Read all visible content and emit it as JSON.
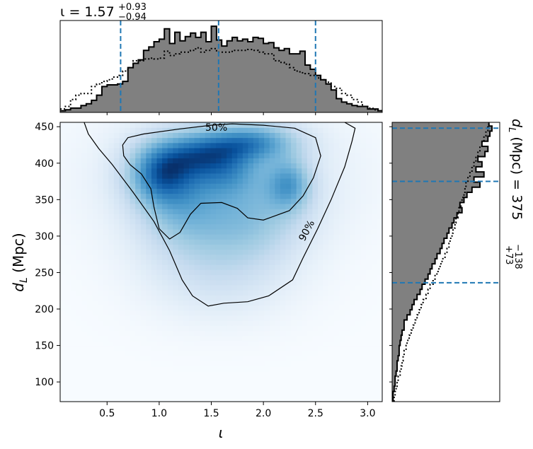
{
  "chart_data": {
    "type": "heatmap",
    "title": "",
    "x": {
      "symbol": "ι",
      "xlabel": "ι",
      "xlim": [
        0.05,
        3.14
      ],
      "ticks": [
        0.5,
        1.0,
        1.5,
        2.0,
        2.5,
        3.0
      ],
      "tick_labels": [
        "0.5",
        "1.0",
        "1.5",
        "2.0",
        "2.5",
        "3.0"
      ]
    },
    "y": {
      "ylabel_main": "d",
      "ylabel_sub": "L",
      "ylabel_unit": "(Mpc)",
      "ylim": [
        73,
        456
      ],
      "ticks": [
        100,
        150,
        200,
        250,
        300,
        350,
        400,
        450
      ],
      "tick_labels": [
        "100",
        "150",
        "200",
        "250",
        "300",
        "350",
        "400",
        "450"
      ]
    },
    "top_marginal": {
      "title_main": "ι = 1.57",
      "title_sup": "+0.93",
      "title_sub": "−0.94",
      "median": 1.57,
      "lower": 0.63,
      "upper": 2.5,
      "bins": [
        0.05,
        0.1,
        0.15,
        0.2,
        0.25,
        0.3,
        0.35,
        0.4,
        0.45,
        0.5,
        0.55,
        0.6,
        0.65,
        0.7,
        0.75,
        0.8,
        0.85,
        0.9,
        0.95,
        1.0,
        1.05,
        1.1,
        1.15,
        1.2,
        1.25,
        1.3,
        1.35,
        1.4,
        1.45,
        1.5,
        1.55,
        1.6,
        1.65,
        1.7,
        1.75,
        1.8,
        1.85,
        1.9,
        1.95,
        2.0,
        2.05,
        2.1,
        2.15,
        2.2,
        2.25,
        2.3,
        2.35,
        2.4,
        2.45,
        2.5,
        2.55,
        2.6,
        2.65,
        2.7,
        2.75,
        2.8,
        2.85,
        2.9,
        2.95,
        3.0,
        3.05,
        3.1,
        3.14
      ],
      "counts": [
        0.02,
        0.03,
        0.05,
        0.05,
        0.08,
        0.1,
        0.14,
        0.2,
        0.3,
        0.32,
        0.32,
        0.33,
        0.36,
        0.52,
        0.57,
        0.61,
        0.72,
        0.76,
        0.82,
        0.85,
        0.97,
        0.8,
        0.93,
        0.83,
        0.88,
        0.92,
        0.87,
        0.93,
        0.82,
        1.0,
        0.84,
        0.77,
        0.83,
        0.87,
        0.83,
        0.85,
        0.82,
        0.87,
        0.86,
        0.8,
        0.81,
        0.75,
        0.72,
        0.74,
        0.68,
        0.68,
        0.71,
        0.55,
        0.5,
        0.43,
        0.38,
        0.33,
        0.26,
        0.16,
        0.12,
        0.1,
        0.08,
        0.07,
        0.07,
        0.04,
        0.04,
        0.02
      ],
      "prior": [
        0.04,
        0.07,
        0.15,
        0.2,
        0.22,
        0.22,
        0.3,
        0.33,
        0.36,
        0.38,
        0.41,
        0.43,
        0.48,
        0.52,
        0.6,
        0.6,
        0.62,
        0.63,
        0.62,
        0.63,
        0.71,
        0.66,
        0.68,
        0.7,
        0.7,
        0.72,
        0.75,
        0.7,
        0.72,
        0.74,
        0.7,
        0.7,
        0.7,
        0.72,
        0.72,
        0.72,
        0.73,
        0.72,
        0.7,
        0.68,
        0.68,
        0.6,
        0.58,
        0.56,
        0.52,
        0.48,
        0.46,
        0.45,
        0.43,
        0.4,
        0.38,
        0.35,
        0.3,
        0.28,
        0.22,
        0.2,
        0.15,
        0.12,
        0.07,
        0.05,
        0.03,
        0.02
      ]
    },
    "right_marginal": {
      "title_main": "d",
      "title_sub": "L",
      "title_unit": "(Mpc) = 375",
      "title_sup2": "+73",
      "title_sub2": "−138",
      "median": 375,
      "lower": 236,
      "upper": 448,
      "bins": [
        73,
        80,
        87,
        94,
        101,
        108,
        115,
        122,
        129,
        136,
        143,
        150,
        157,
        164,
        171,
        178,
        185,
        192,
        199,
        206,
        213,
        220,
        227,
        234,
        241,
        248,
        255,
        262,
        269,
        276,
        283,
        290,
        297,
        304,
        311,
        318,
        325,
        332,
        339,
        346,
        353,
        360,
        367,
        374,
        381,
        388,
        395,
        402,
        409,
        416,
        423,
        430,
        437,
        444,
        451,
        456
      ],
      "counts": [
        0.01,
        0.01,
        0.02,
        0.03,
        0.03,
        0.04,
        0.05,
        0.05,
        0.06,
        0.07,
        0.07,
        0.08,
        0.09,
        0.1,
        0.12,
        0.12,
        0.15,
        0.18,
        0.2,
        0.22,
        0.25,
        0.28,
        0.3,
        0.33,
        0.36,
        0.38,
        0.4,
        0.43,
        0.45,
        0.48,
        0.5,
        0.52,
        0.55,
        0.57,
        0.6,
        0.62,
        0.65,
        0.7,
        0.68,
        0.72,
        0.75,
        0.8,
        0.88,
        0.82,
        0.92,
        0.84,
        0.9,
        0.86,
        0.93,
        0.96,
        0.9,
        0.96,
        0.98,
        1.0,
        0.97
      ],
      "prior": [
        0.02,
        0.03,
        0.04,
        0.05,
        0.06,
        0.08,
        0.09,
        0.1,
        0.11,
        0.12,
        0.14,
        0.15,
        0.17,
        0.19,
        0.21,
        0.23,
        0.25,
        0.27,
        0.29,
        0.31,
        0.34,
        0.36,
        0.38,
        0.41,
        0.43,
        0.46,
        0.48,
        0.5,
        0.53,
        0.55,
        0.57,
        0.58,
        0.6,
        0.61,
        0.63,
        0.64,
        0.66,
        0.67,
        0.69,
        0.7,
        0.72,
        0.73,
        0.74,
        0.76,
        0.78,
        0.8,
        0.82,
        0.84,
        0.86,
        0.88,
        0.9,
        0.92,
        0.94,
        0.96,
        0.97
      ]
    },
    "contours": [
      {
        "label": "50%"
      },
      {
        "label": "90%"
      }
    ],
    "colors": {
      "hist_fill": "#808080",
      "hist_edge": "#000000",
      "quantile_line": "#1f77b4",
      "contour": "#000000"
    }
  }
}
